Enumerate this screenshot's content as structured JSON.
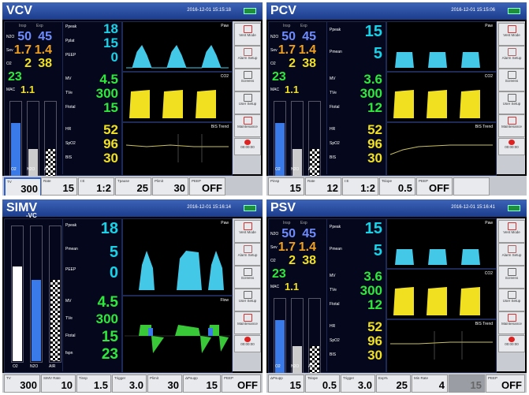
{
  "panels": [
    {
      "mode": "VCV",
      "submode": "",
      "datetime": "2016-12-01 15:15:18",
      "top_labels": {
        "insp": "Insp",
        "exp": "Exp",
        "mac": "MAC"
      },
      "gas": [
        {
          "label": "N2O",
          "insp": "50",
          "exp": "45"
        },
        {
          "label": "Sev",
          "insp": "1.7",
          "exp": "1.4"
        },
        {
          "label": "O2",
          "insp": "2",
          "exp": "38"
        }
      ],
      "single_green": "23",
      "mac_value": "1.1",
      "mid_values": [
        {
          "label": "Ppeak",
          "value": "18",
          "color": "#18d2e8"
        },
        {
          "label": "Pplat",
          "value": "15",
          "color": "#18d2e8"
        },
        {
          "label": "PEEP",
          "value": "0",
          "color": "#18d2e8"
        },
        {
          "label": "MV",
          "value": "4.5",
          "color": "#2ee83c"
        },
        {
          "label": "TVe",
          "value": "300",
          "color": "#2ee83c"
        },
        {
          "label": "Ftotal",
          "value": "15",
          "color": "#2ee83c"
        },
        {
          "label": "HR",
          "value": "52",
          "color": "#f0e020"
        },
        {
          "label": "SpO2",
          "value": "96",
          "color": "#f0e020"
        },
        {
          "label": "BIS",
          "value": "30",
          "color": "#f0e020"
        }
      ],
      "wave_titles": [
        "Paw",
        "CO2",
        "BIS Trend"
      ],
      "bars": [
        {
          "label": "O2",
          "level": 0.75,
          "color": "#3a7ae8"
        },
        {
          "label": "N2O",
          "level": 0.45,
          "color": "#cccccc"
        },
        {
          "label": "AIR",
          "level": 0.45,
          "color": "checker"
        }
      ],
      "side_buttons": [
        "Vent Mode",
        "Alarm Setup",
        "Screens",
        "User Setup",
        "Maintenance",
        "00:00:00"
      ],
      "bottom": [
        {
          "label": "TV",
          "value": "300"
        },
        {
          "label": "Rate",
          "value": "15"
        },
        {
          "label": "I:E",
          "value": "1:2"
        },
        {
          "label": "Tpause",
          "value": "25"
        },
        {
          "label": "Plimit",
          "value": "30"
        },
        {
          "label": "PEEP",
          "value": "OFF"
        }
      ]
    },
    {
      "mode": "PCV",
      "submode": "",
      "datetime": "2016-12-01 15:15:06",
      "top_labels": {
        "insp": "Insp",
        "exp": "Exp",
        "mac": "MAC"
      },
      "gas": [
        {
          "label": "N2O",
          "insp": "50",
          "exp": "45"
        },
        {
          "label": "Sev",
          "insp": "1.7",
          "exp": "1.4"
        },
        {
          "label": "O2",
          "insp": "2",
          "exp": "38"
        }
      ],
      "single_green": "23",
      "mac_value": "1.1",
      "mid_values": [
        {
          "label": "Ppeak",
          "value": "15",
          "color": "#18d2e8"
        },
        {
          "label": "Pmean",
          "value": "5",
          "color": "#18d2e8"
        },
        {
          "label": "MV",
          "value": "3.6",
          "color": "#2ee83c"
        },
        {
          "label": "TVe",
          "value": "300",
          "color": "#2ee83c"
        },
        {
          "label": "Ftotal",
          "value": "12",
          "color": "#2ee83c"
        },
        {
          "label": "HR",
          "value": "52",
          "color": "#f0e020"
        },
        {
          "label": "SpO2",
          "value": "96",
          "color": "#f0e020"
        },
        {
          "label": "BIS",
          "value": "30",
          "color": "#f0e020"
        }
      ],
      "wave_titles": [
        "Paw",
        "CO2",
        "BIS Trend"
      ],
      "bars": [
        {
          "label": "O2",
          "level": 0.75,
          "color": "#3a7ae8"
        },
        {
          "label": "N2O",
          "level": 0.45,
          "color": "#cccccc"
        },
        {
          "label": "AIR",
          "level": 0.45,
          "color": "checker"
        }
      ],
      "side_buttons": [
        "Vent Mode",
        "Alarm Setup",
        "Screens",
        "User Setup",
        "Maintenance",
        "00:00:00"
      ],
      "bottom": [
        {
          "label": "Pinsp",
          "value": "15"
        },
        {
          "label": "Rate",
          "value": "12"
        },
        {
          "label": "I:E",
          "value": "1:2"
        },
        {
          "label": "Tslope",
          "value": "0.5"
        },
        {
          "label": "PEEP",
          "value": "OFF"
        },
        {
          "label": "",
          "value": ""
        }
      ]
    },
    {
      "mode": "SIMV",
      "submode": "-VC",
      "datetime": "2016-12-01 15:16:14",
      "mid_values": [
        {
          "label": "Ppeak",
          "value": "18",
          "color": "#18d2e8"
        },
        {
          "label": "Pmean",
          "value": "5",
          "color": "#18d2e8"
        },
        {
          "label": "PEEP",
          "value": "0",
          "color": "#18d2e8"
        },
        {
          "label": "MV",
          "value": "4.5",
          "color": "#2ee83c"
        },
        {
          "label": "TVe",
          "value": "300",
          "color": "#2ee83c"
        },
        {
          "label": "Ftotal",
          "value": "15",
          "color": "#2ee83c"
        },
        {
          "label": "fspn",
          "value": "23",
          "color": "#2ee83c"
        }
      ],
      "wave_titles": [
        "Paw",
        "Flow"
      ],
      "bars": [
        {
          "label": "O2",
          "level": 0.7,
          "color": "#ffffff"
        },
        {
          "label": "N2O",
          "level": 0.6,
          "color": "#3a7ae8"
        },
        {
          "label": "AIR",
          "level": 0.6,
          "color": "checker"
        }
      ],
      "side_buttons": [
        "Vent Mode",
        "Alarm Setup",
        "Screens",
        "User Setup",
        "Maintenance",
        "00:00:00"
      ],
      "bottom": [
        {
          "label": "TV",
          "value": "300"
        },
        {
          "label": "SIMV Rate",
          "value": "10"
        },
        {
          "label": "Tinsp",
          "value": "1.5"
        },
        {
          "label": "Trigger",
          "value": "3.0"
        },
        {
          "label": "Plimit",
          "value": "30"
        },
        {
          "label": "ΔPsupp",
          "value": "15"
        },
        {
          "label": "PEEP",
          "value": "OFF"
        }
      ]
    },
    {
      "mode": "PSV",
      "submode": "",
      "datetime": "2016-12-01 15:16:41",
      "top_labels": {
        "insp": "Insp",
        "exp": "Exp",
        "mac": "MAC"
      },
      "gas": [
        {
          "label": "N2O",
          "insp": "50",
          "exp": "45"
        },
        {
          "label": "Sev",
          "insp": "1.7",
          "exp": "1.4"
        },
        {
          "label": "O2",
          "insp": "2",
          "exp": "38"
        }
      ],
      "single_green": "23",
      "mac_value": "1.1",
      "mid_values": [
        {
          "label": "Ppeak",
          "value": "15",
          "color": "#18d2e8"
        },
        {
          "label": "Pmean",
          "value": "5",
          "color": "#18d2e8"
        },
        {
          "label": "MV",
          "value": "3.6",
          "color": "#2ee83c"
        },
        {
          "label": "TVe",
          "value": "300",
          "color": "#2ee83c"
        },
        {
          "label": "Ftotal",
          "value": "12",
          "color": "#2ee83c"
        },
        {
          "label": "HR",
          "value": "52",
          "color": "#f0e020"
        },
        {
          "label": "SpO2",
          "value": "96",
          "color": "#f0e020"
        },
        {
          "label": "BIS",
          "value": "30",
          "color": "#f0e020"
        }
      ],
      "wave_titles": [
        "Paw",
        "CO2",
        "BIS Trend"
      ],
      "bars": [
        {
          "label": "O2",
          "level": 0.75,
          "color": "#3a7ae8"
        },
        {
          "label": "N2O",
          "level": 0.45,
          "color": "#cccccc"
        },
        {
          "label": "AIR",
          "level": 0.45,
          "color": "checker"
        }
      ],
      "side_buttons": [
        "Vent Mode",
        "Alarm Setup",
        "Screens",
        "User Setup",
        "Maintenance",
        "00:00:00"
      ],
      "bottom": [
        {
          "label": "ΔPsupp",
          "value": "15"
        },
        {
          "label": "Tslope",
          "value": "0.5"
        },
        {
          "label": "Trigger",
          "value": "3.0"
        },
        {
          "label": "Exp%",
          "value": "25"
        },
        {
          "label": "Min Rate",
          "value": "4"
        },
        {
          "label": "",
          "value": "15"
        },
        {
          "label": "PEEP",
          "value": "OFF"
        }
      ]
    }
  ]
}
